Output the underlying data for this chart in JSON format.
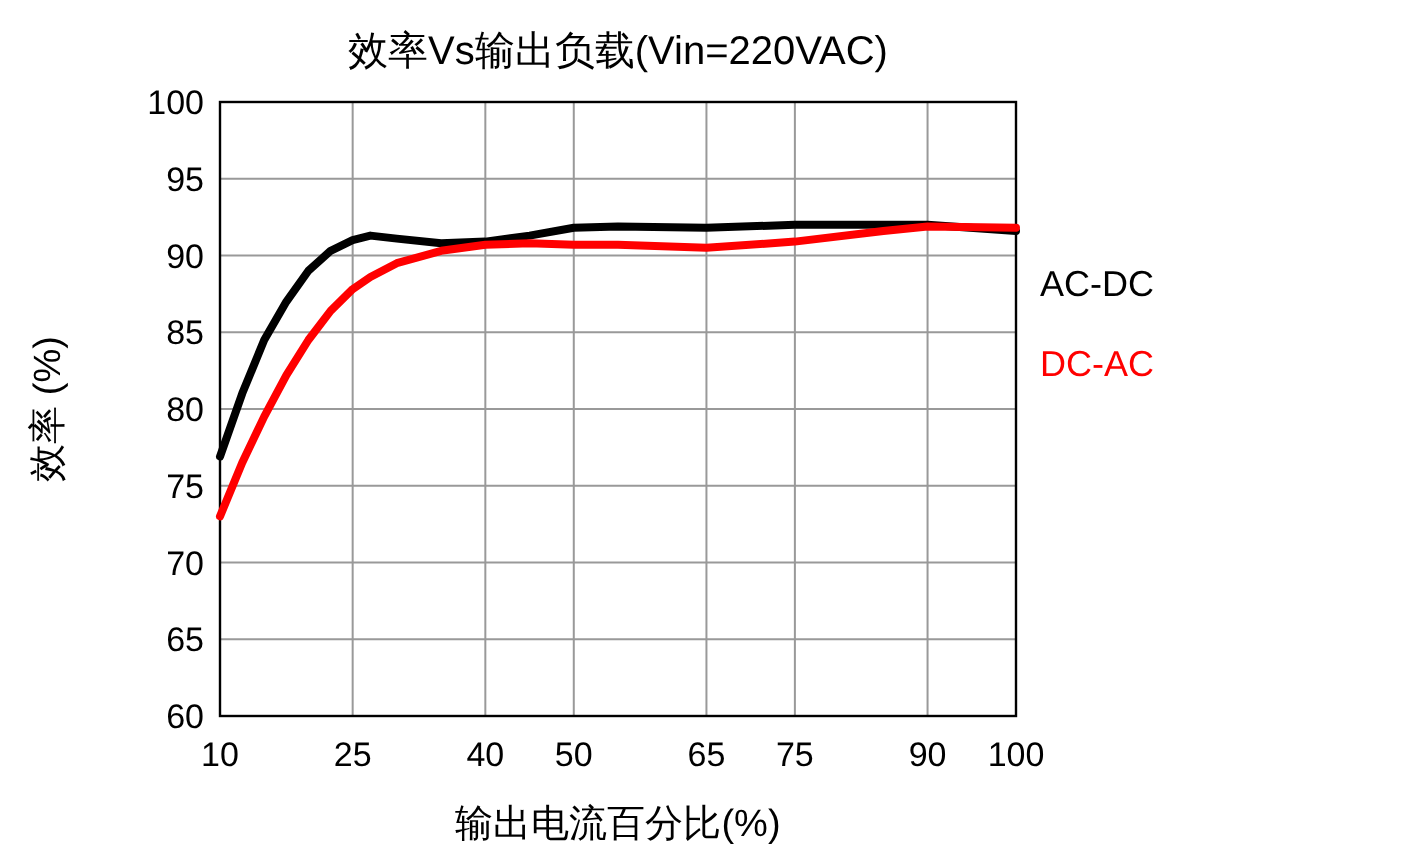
{
  "chart_data": {
    "type": "line",
    "title": "效率Vs输出负载(Vin=220VAC)",
    "xlabel": "输出电流百分比(%)",
    "ylabel": "效率 (%)",
    "xlim": [
      10,
      100
    ],
    "xticks": [
      10,
      25,
      40,
      50,
      65,
      75,
      90,
      100
    ],
    "ylim": [
      60,
      100
    ],
    "yticks": [
      60,
      65,
      70,
      75,
      80,
      85,
      90,
      95,
      100
    ],
    "grid": true,
    "legend": "right",
    "line_style": "solid",
    "marker": "none",
    "series": [
      {
        "name": "AC-DC",
        "color": "#000000",
        "x": [
          10,
          12.5,
          15,
          17.5,
          20,
          22.5,
          25,
          27,
          30,
          35,
          40,
          45,
          50,
          55,
          65,
          75,
          85,
          90,
          100
        ],
        "values": [
          76.9,
          81,
          84.5,
          87,
          89,
          90.3,
          91,
          91.3,
          91.1,
          90.8,
          90.9,
          91.3,
          91.8,
          91.9,
          91.8,
          92,
          92,
          92,
          91.6
        ]
      },
      {
        "name": "DC-AC",
        "color": "#ff0000",
        "x": [
          10,
          12.5,
          15,
          17.5,
          20,
          22.5,
          25,
          27,
          30,
          35,
          40,
          45,
          50,
          55,
          65,
          75,
          85,
          90,
          100
        ],
        "values": [
          73,
          76.5,
          79.5,
          82.2,
          84.5,
          86.4,
          87.8,
          88.6,
          89.5,
          90.3,
          90.7,
          90.8,
          90.7,
          90.7,
          90.5,
          90.9,
          91.6,
          91.9,
          91.8
        ]
      }
    ]
  }
}
